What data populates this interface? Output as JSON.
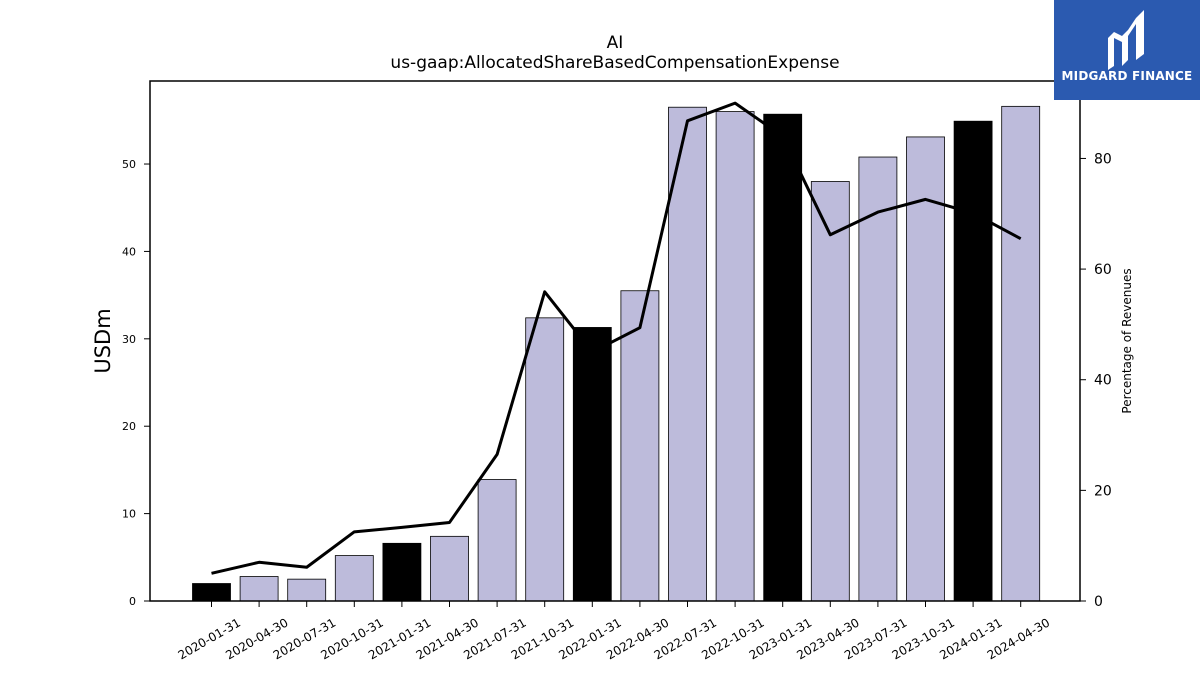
{
  "logo": {
    "text": "MIDGARD FINANCE",
    "bg_color": "#2b5ab0"
  },
  "chart_data": {
    "type": "bar",
    "title": "AI",
    "subtitle": "us-gaap:AllocatedShareBasedCompensationExpense",
    "ylabel": "USDm",
    "y2label": "Percentage of Revenues",
    "ylim": [
      0,
      59.5
    ],
    "y2lim": [
      0,
      94
    ],
    "yticks": [
      0,
      10,
      20,
      30,
      40,
      50
    ],
    "y2ticks": [
      0,
      20,
      40,
      60,
      80
    ],
    "categories": [
      "2020-01-31",
      "2020-04-30",
      "2020-07-31",
      "2020-10-31",
      "2021-01-31",
      "2021-04-30",
      "2021-07-31",
      "2021-10-31",
      "2022-01-31",
      "2022-04-30",
      "2022-07-31",
      "2022-10-31",
      "2023-01-31",
      "2023-04-30",
      "2023-07-31",
      "2023-10-31",
      "2024-01-31",
      "2024-04-30"
    ],
    "series": [
      {
        "kind": "bar",
        "values": [
          2.0,
          2.8,
          2.5,
          5.2,
          6.6,
          7.4,
          13.9,
          32.4,
          31.3,
          35.5,
          56.5,
          56.0,
          55.7,
          48.0,
          50.8,
          53.1,
          54.9,
          56.6
        ],
        "colors": [
          "#000000",
          "#bdbbdb",
          "#bdbbdb",
          "#bdbbdb",
          "#000000",
          "#bdbbdb",
          "#bdbbdb",
          "#bdbbdb",
          "#000000",
          "#bdbbdb",
          "#bdbbdb",
          "#bdbbdb",
          "#000000",
          "#bdbbdb",
          "#bdbbdb",
          "#bdbbdb",
          "#000000",
          "#bdbbdb"
        ]
      },
      {
        "kind": "line",
        "axis": "right",
        "color": "#000000",
        "values": [
          5.0,
          7.0,
          6.1,
          12.5,
          13.3,
          14.2,
          26.5,
          55.9,
          45.0,
          49.4,
          86.8,
          90.0,
          84.0,
          66.2,
          70.3,
          72.6,
          70.1,
          65.5
        ]
      }
    ],
    "legend": "none",
    "grid": false
  }
}
